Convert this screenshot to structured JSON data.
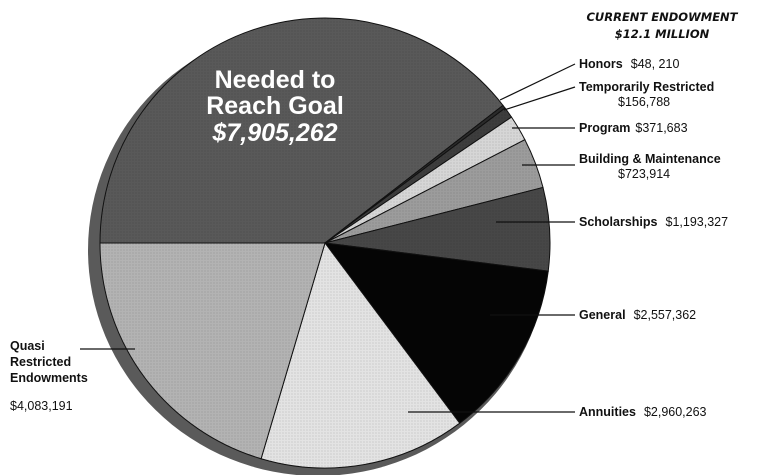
{
  "chart_data": {
    "type": "pie",
    "header": {
      "title": "CURRENT ENDOWMENT",
      "subtitle": "$12.1 MILLION"
    },
    "slices": [
      {
        "name": "Needed to Reach Goal",
        "value_label": "$7,905,262",
        "value": 7905262,
        "color": "#595959"
      },
      {
        "name": "Honors",
        "value_label": "$48, 210",
        "value": 48210,
        "color": "#2b2b2b"
      },
      {
        "name": "Temporarily Restricted",
        "value_label": "$156,788",
        "value": 156788,
        "color": "#3d3d3d"
      },
      {
        "name": "Program",
        "value_label": "$371,683",
        "value": 371683,
        "color": "#d6d6d6"
      },
      {
        "name": "Building & Maintenance",
        "value_label": "$723,914",
        "value": 723914,
        "color": "#9c9c9c"
      },
      {
        "name": "Scholarships",
        "value_label": "$1,193,327",
        "value": 1193327,
        "color": "#474747"
      },
      {
        "name": "General",
        "value_label": "$2,557,362",
        "value": 2557362,
        "color": "#050505"
      },
      {
        "name": "Annuities",
        "value_label": "$2,960,263",
        "value": 2960263,
        "color": "#e3e3e3"
      },
      {
        "name": "Quasi Restricted Endowments",
        "value_label": "$4,083,191",
        "value": 4083191,
        "color": "#b3b3b3"
      }
    ],
    "goal_label_lines": [
      "Needed to",
      "Reach Goal"
    ],
    "quasi_label_lines": [
      "Quasi",
      "Restricted",
      "Endowments"
    ]
  }
}
